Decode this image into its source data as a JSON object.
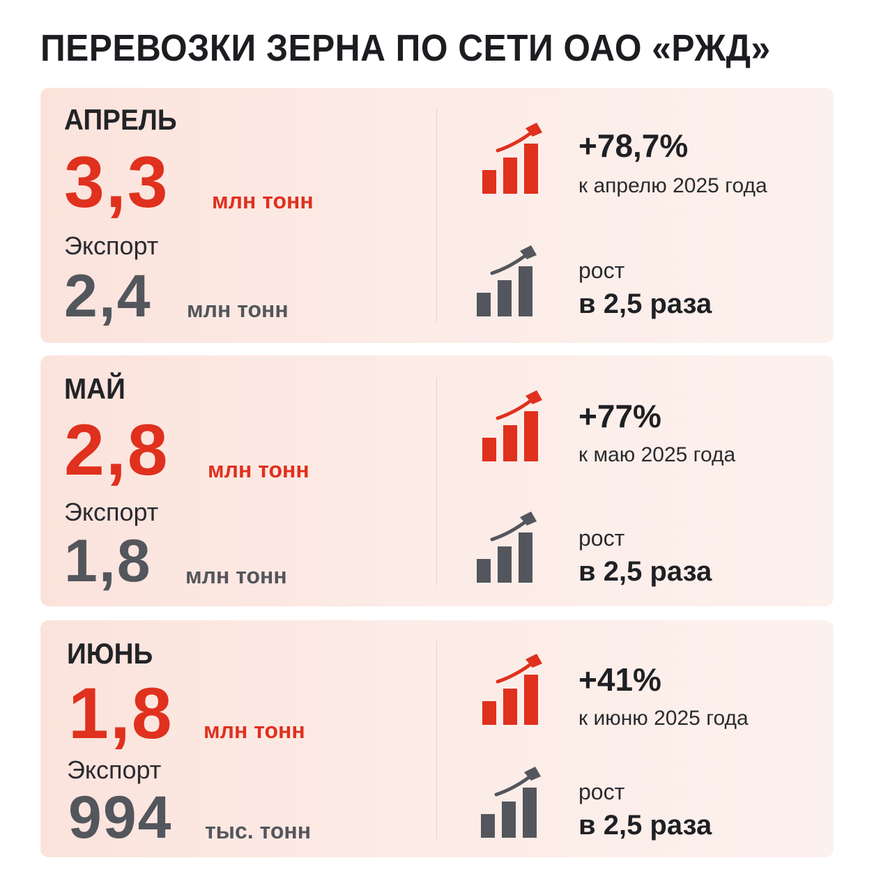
{
  "title": "ПЕРЕВОЗКИ ЗЕРНА ПО СЕТИ ОАО «РЖД»",
  "colors": {
    "accent_red": "#e0301e",
    "gray": "#53565c",
    "card_bg": "#fbe6df"
  },
  "icons": {
    "total_growth": "bar-chart-up-arrow-red-icon",
    "export_growth": "bar-chart-up-arrow-gray-icon"
  },
  "months": [
    {
      "month": "АПРЕЛЬ",
      "total_value": "3,3",
      "total_unit": "млн тонн",
      "export_label": "Экспорт",
      "export_value": "2,4",
      "export_unit": "млн тонн",
      "change_pct": "+78,7%",
      "change_compare": "к апрелю 2025 года",
      "export_growth_label": "рост",
      "export_growth_value": "в 2,5 раза"
    },
    {
      "month": "МАЙ",
      "total_value": "2,8",
      "total_unit": "млн тонн",
      "export_label": "Экспорт",
      "export_value": "1,8",
      "export_unit": "млн тонн",
      "change_pct": "+77%",
      "change_compare": "к маю 2025 года",
      "export_growth_label": "рост",
      "export_growth_value": "в 2,5 раза"
    },
    {
      "month": "ИЮНЬ",
      "total_value": "1,8",
      "total_unit": "млн тонн",
      "export_label": "Экспорт",
      "export_value": "994",
      "export_unit": "тыс. тонн",
      "change_pct": "+41%",
      "change_compare": "к июню 2025 года",
      "export_growth_label": "рост",
      "export_growth_value": "в 2,5 раза"
    }
  ]
}
